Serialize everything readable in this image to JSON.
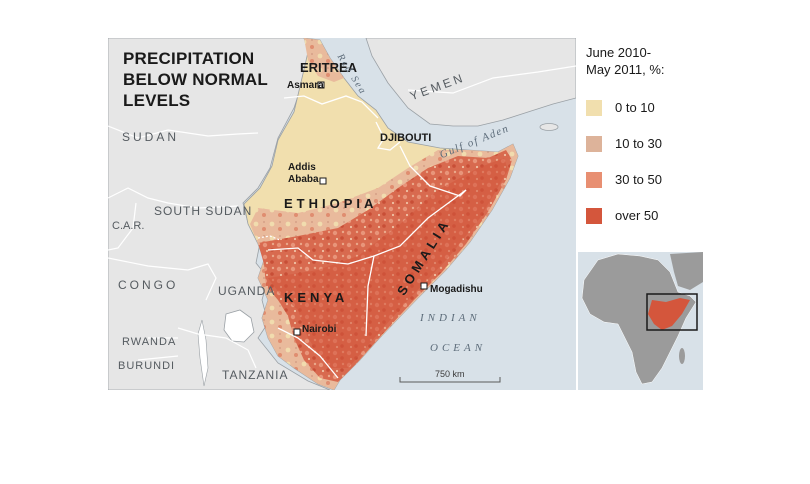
{
  "title": "PRECIPITATION BELOW NORMAL LEVELS",
  "legend": {
    "title": "June 2010-\nMay 2011, %:",
    "items": [
      {
        "label": "0 to 10",
        "color": "#f1dfae"
      },
      {
        "label": "10 to 30",
        "color": "#ddb39a"
      },
      {
        "label": "30 to 50",
        "color": "#e88f72"
      },
      {
        "label": "over 50",
        "color": "#d4563c"
      }
    ]
  },
  "countries": {
    "sudan": "SUDAN",
    "yemen": "YEMEN",
    "south_sudan": "SOUTH SUDAN",
    "car": "C.A.R.",
    "congo": "CONGO",
    "uganda": "UGANDA",
    "rwanda": "RWANDA",
    "burundi": "BURUNDI",
    "tanzania": "TANZANIA",
    "eritrea": "ERITREA",
    "djibouti": "DJIBOUTI",
    "ethiopia": "ETHIOPIA",
    "kenya": "KENYA",
    "somalia": "SOMALIA"
  },
  "cities": {
    "asmara": "Asmara",
    "addis_ababa": "Addis\nAbaba",
    "nairobi": "Nairobi",
    "mogadishu": "Mogadishu"
  },
  "seas": {
    "red_sea": "Red Sea",
    "gulf_of_aden": "Gulf of Aden",
    "indian": "INDIAN",
    "ocean": "OCEAN"
  },
  "scale": {
    "label": "750 km"
  },
  "colors": {
    "water": "#d8e1e8",
    "land": "#e6e6e6",
    "border": "#ffffff",
    "land_outline": "#9aa0a5"
  }
}
